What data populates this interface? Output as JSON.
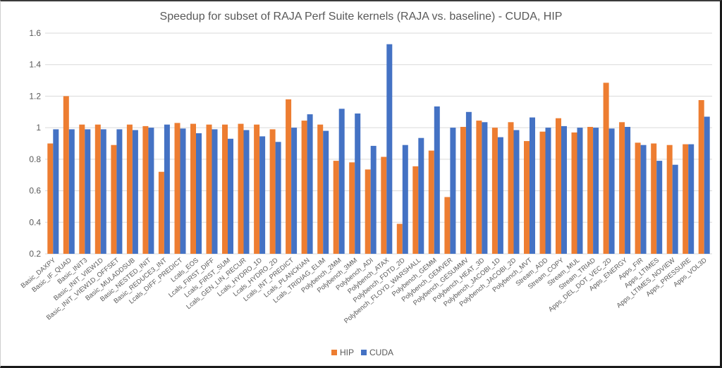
{
  "chart_data": {
    "type": "bar",
    "title": "Speedup for subset of RAJA Perf Suite kernels (RAJA vs. baseline) - CUDA, HIP",
    "xlabel": "",
    "ylabel": "",
    "ylim": [
      0.2,
      1.6
    ],
    "yticks": [
      "0.2",
      "0.4",
      "0.6",
      "0.8",
      "1",
      "1.2",
      "1.4",
      "1.6"
    ],
    "ytick_values": [
      0.2,
      0.4,
      0.6,
      0.8,
      1.0,
      1.2,
      1.4,
      1.6
    ],
    "grid": true,
    "legend_position": "bottom",
    "categories": [
      "Basic_DAXPY",
      "Basic_IF_QUAD",
      "Basic_INIT3",
      "Basic_INIT_VIEW1D",
      "Basic_INIT_VIEW1D_OFFSET",
      "Basic_MULADDSUB",
      "Basic_NESTED_INIT",
      "Basic_REDUCE3_INT",
      "Lcals_DIFF_PREDICT",
      "Lcals_EOS",
      "Lcals_FIRST_DIFF",
      "Lcals_FIRST_SUM",
      "Lcals_GEN_LIN_RECUR",
      "Lcals_HYDRO_1D",
      "Lcals_HYDRO_2D",
      "Lcals_INT_PREDICT",
      "Lcals_PLANCKIAN",
      "Lcals_TRIDIAG_ELIM",
      "Polybench_2MM",
      "Polybench_3MM",
      "Polybench_ADI",
      "Polybench_ATAX",
      "Polybench_FDTD_2D",
      "Polybench_FLOYD_WARSHALL",
      "Polybench_GEMM",
      "Polybench_GEMVER",
      "Polybench_GESUMMV",
      "Polybench_HEAT_3D",
      "Polybench_JACOBI_1D",
      "Polybench_JACOBI_2D",
      "Polybench_MVT",
      "Stream_ADD",
      "Stream_COPY",
      "Stream_MUL",
      "Stream_TRIAD",
      "Apps_DEL_DOT_VEC_2D",
      "Apps_ENERGY",
      "Apps_FIR",
      "Apps_LTIMES",
      "Apps_LTIMES_NOVIEW",
      "Apps_PRESSURE",
      "Apps_VOL3D"
    ],
    "series": [
      {
        "name": "HIP",
        "color": "#ED7D31",
        "values": [
          0.9,
          1.2,
          1.02,
          1.02,
          0.89,
          1.02,
          1.01,
          0.72,
          1.03,
          1.025,
          1.02,
          1.02,
          1.025,
          1.02,
          0.99,
          1.18,
          1.045,
          1.02,
          0.79,
          0.78,
          0.735,
          0.815,
          0.39,
          0.755,
          0.855,
          0.56,
          1.005,
          1.045,
          1.0,
          1.035,
          0.915,
          0.975,
          1.06,
          0.97,
          1.005,
          1.285,
          1.035,
          0.905,
          0.9,
          0.89,
          0.895,
          1.175
        ]
      },
      {
        "name": "CUDA",
        "color": "#4472C4",
        "values": [
          0.99,
          0.99,
          0.99,
          0.99,
          0.99,
          0.985,
          1.0,
          1.02,
          0.995,
          0.965,
          0.99,
          0.93,
          0.985,
          0.945,
          0.91,
          1.0,
          1.085,
          0.98,
          1.12,
          1.09,
          0.885,
          1.53,
          0.89,
          0.935,
          1.135,
          1.0,
          1.1,
          1.035,
          0.94,
          0.985,
          1.065,
          1.0,
          1.01,
          1.0,
          1.0,
          0.995,
          1.005,
          0.89,
          0.79,
          0.765,
          0.895,
          1.07
        ]
      }
    ]
  }
}
